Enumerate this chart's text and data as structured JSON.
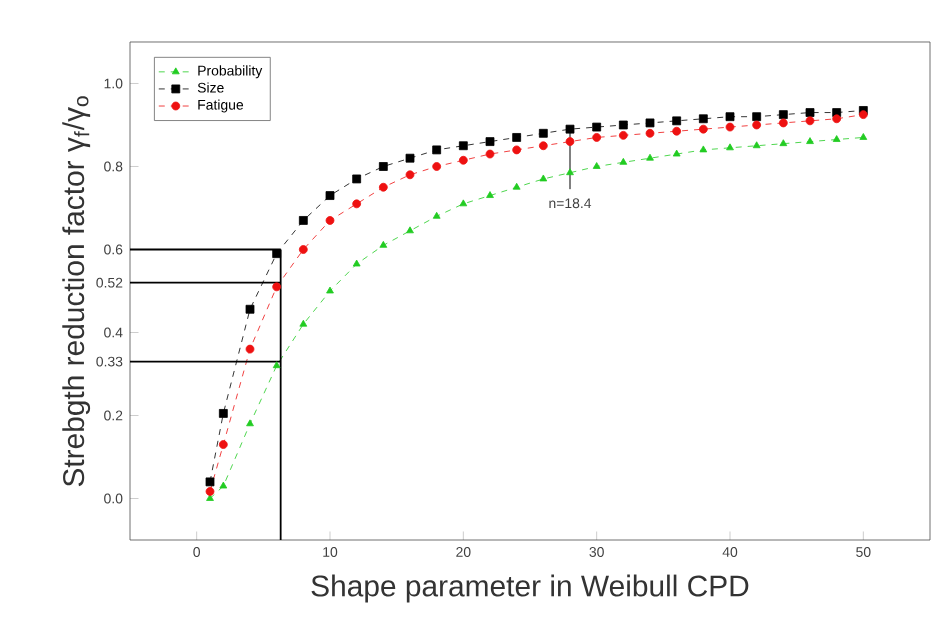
{
  "chart_data": {
    "type": "line",
    "xlabel": "Shape parameter in Weibull CPD",
    "ylabel": "Strebgth reduction factor γ$_{f}$/γ$_{o}$",
    "xlim": [
      -5,
      55
    ],
    "xticks": [
      0,
      10,
      20,
      30,
      40,
      50
    ],
    "ylim": [
      -0.1,
      1.1
    ],
    "yticks": [
      {
        "value": 0,
        "label": "0.0"
      },
      0.2,
      0.33,
      0.4,
      0.52,
      0.6,
      0.8,
      {
        "value": 1,
        "label": "1.0"
      }
    ],
    "grid": false,
    "legend": "top left",
    "line_style": "dashed",
    "x": [
      1,
      2,
      4,
      6,
      8,
      10,
      12,
      14,
      16,
      18,
      20,
      22,
      24,
      26,
      28,
      30,
      32,
      34,
      36,
      38,
      40,
      42,
      44,
      46,
      48,
      50
    ],
    "series": [
      {
        "name": "Probability",
        "color": "#22cc22",
        "marker": "triangle",
        "values": [
          0.0,
          0.03,
          0.18,
          0.32,
          0.42,
          0.5,
          0.565,
          0.61,
          0.645,
          0.68,
          0.71,
          0.73,
          0.75,
          0.77,
          0.785,
          0.8,
          0.81,
          0.82,
          0.83,
          0.84,
          0.845,
          0.85,
          0.855,
          0.86,
          0.865,
          0.87
        ]
      },
      {
        "name": "Size",
        "color": "#000000",
        "marker": "square",
        "values": [
          0.04,
          0.205,
          0.456,
          0.59,
          0.67,
          0.73,
          0.77,
          0.8,
          0.82,
          0.84,
          0.85,
          0.86,
          0.87,
          0.88,
          0.89,
          0.895,
          0.9,
          0.905,
          0.91,
          0.915,
          0.92,
          0.92,
          0.925,
          0.93,
          0.93,
          0.935
        ]
      },
      {
        "name": "Fatigue",
        "color": "#ee1111",
        "marker": "circle",
        "values": [
          0.017,
          0.13,
          0.36,
          0.51,
          0.6,
          0.67,
          0.71,
          0.75,
          0.78,
          0.8,
          0.815,
          0.83,
          0.84,
          0.85,
          0.86,
          0.87,
          0.875,
          0.88,
          0.885,
          0.89,
          0.895,
          0.9,
          0.905,
          0.91,
          0.915,
          0.925
        ]
      }
    ],
    "ref_lines": [
      {
        "axis": "x",
        "value": 6.3
      },
      {
        "axis": "y",
        "value": 0.6
      },
      {
        "axis": "y",
        "value": 0.52
      },
      {
        "axis": "y",
        "value": 0.33
      }
    ],
    "annotations": [
      {
        "text": "n=18.4",
        "x": 28,
        "y": 0.89
      }
    ]
  }
}
